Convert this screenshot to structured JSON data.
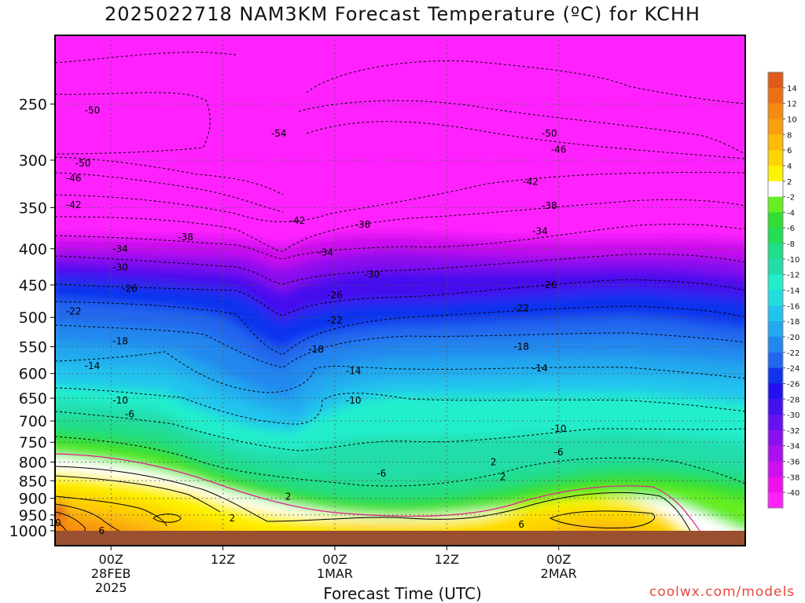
{
  "title": "2025022718 NAM3KM Forecast Temperature (ºC) for KCHH",
  "xlabel": "Forecast Time (UTC)",
  "credit": "coolwx.com/models",
  "chart_data": {
    "type": "heatmap",
    "title": "2025022718 NAM3KM Forecast Temperature (ºC) for KCHH",
    "xlabel": "Forecast Time (UTC)",
    "ylabel": "",
    "y_scale": "log",
    "y_inverted": true,
    "ylim": [
      1000,
      200
    ],
    "xlim": [
      "2025-02-27T18Z",
      "2025-03-02T20Z"
    ],
    "y_ticks": [
      250,
      300,
      350,
      400,
      450,
      500,
      550,
      600,
      650,
      700,
      750,
      800,
      850,
      900,
      950,
      1000
    ],
    "x_ticks": [
      {
        "x": "2025-02-28T00Z",
        "lines": [
          "00Z",
          "28FEB",
          "2025"
        ]
      },
      {
        "x": "2025-02-28T12Z",
        "lines": [
          "12Z"
        ]
      },
      {
        "x": "2025-03-01T00Z",
        "lines": [
          "00Z",
          "1MAR"
        ]
      },
      {
        "x": "2025-03-01T12Z",
        "lines": [
          "12Z"
        ]
      },
      {
        "x": "2025-03-02T00Z",
        "lines": [
          "00Z",
          "2MAR"
        ]
      }
    ],
    "grid": true,
    "colorbar": {
      "labels": [
        "14",
        "12",
        "10",
        "8",
        "6",
        "4",
        "2",
        "-2",
        "-4",
        "-6",
        "-8",
        "-10",
        "-12",
        "-14",
        "-16",
        "-18",
        "-20",
        "-22",
        "-24",
        "-26",
        "-28",
        "-30",
        "-32",
        "-34",
        "-36",
        "-38",
        "-40"
      ],
      "colors": [
        "#e05a18",
        "#ee7014",
        "#f58a10",
        "#f9a00c",
        "#fbbb08",
        "#fdd404",
        "#fdf200",
        "#ffffff",
        "#66ee22",
        "#33dd33",
        "#22dd55",
        "#22dd88",
        "#22ddaa",
        "#22eecc",
        "#22dddd",
        "#22c4ee",
        "#22a8ee",
        "#2288ee",
        "#2266ee",
        "#1133ee",
        "#2211ee",
        "#4411ee",
        "#6611ee",
        "#8811ee",
        "#aa11ee",
        "#cc11ee",
        "#ee11ee",
        "#ff22ff"
      ]
    },
    "contour_labels": [
      {
        "x": "2025-02-27T22Z",
        "y": 255,
        "value": "-50"
      },
      {
        "x": "2025-02-28T18Z",
        "y": 275,
        "value": "-54"
      },
      {
        "x": "2025-03-01T23Z",
        "y": 275,
        "value": "-50"
      },
      {
        "x": "2025-03-02T00Z",
        "y": 290,
        "value": "-46"
      },
      {
        "x": "2025-02-27T21Z",
        "y": 303,
        "value": "-50"
      },
      {
        "x": "2025-02-27T20Z",
        "y": 318,
        "value": "-46"
      },
      {
        "x": "2025-02-27T20Z",
        "y": 347,
        "value": "-42"
      },
      {
        "x": "2025-02-28T20Z",
        "y": 365,
        "value": "-42"
      },
      {
        "x": "2025-03-01T03Z",
        "y": 370,
        "value": "-38"
      },
      {
        "x": "2025-03-01T21Z",
        "y": 322,
        "value": "-42"
      },
      {
        "x": "2025-03-01T23Z",
        "y": 348,
        "value": "-38"
      },
      {
        "x": "2025-02-28T08Z",
        "y": 385,
        "value": "-38"
      },
      {
        "x": "2025-03-01T22Z",
        "y": 378,
        "value": "-34"
      },
      {
        "x": "2025-02-28T01Z",
        "y": 400,
        "value": "-34"
      },
      {
        "x": "2025-02-28T01Z",
        "y": 425,
        "value": "-30"
      },
      {
        "x": "2025-02-28T23Z",
        "y": 405,
        "value": "-34"
      },
      {
        "x": "2025-03-01T04Z",
        "y": 435,
        "value": "-30"
      },
      {
        "x": "2025-02-28T02Z",
        "y": 455,
        "value": "-26"
      },
      {
        "x": "2025-03-01T00Z",
        "y": 465,
        "value": "-26"
      },
      {
        "x": "2025-03-01T23Z",
        "y": 450,
        "value": "-26"
      },
      {
        "x": "2025-02-27T20Z",
        "y": 490,
        "value": "-22"
      },
      {
        "x": "2025-03-01T00Z",
        "y": 505,
        "value": "-22"
      },
      {
        "x": "2025-03-01T20Z",
        "y": 485,
        "value": "-22"
      },
      {
        "x": "2025-02-28T01Z",
        "y": 540,
        "value": "-18"
      },
      {
        "x": "2025-02-28T22Z",
        "y": 555,
        "value": "-18"
      },
      {
        "x": "2025-03-01T20Z",
        "y": 550,
        "value": "-18"
      },
      {
        "x": "2025-02-27T22Z",
        "y": 585,
        "value": "-14"
      },
      {
        "x": "2025-03-01T02Z",
        "y": 595,
        "value": "-14"
      },
      {
        "x": "2025-03-01T22Z",
        "y": 590,
        "value": "-14"
      },
      {
        "x": "2025-02-28T01Z",
        "y": 655,
        "value": "-10"
      },
      {
        "x": "2025-03-01T02Z",
        "y": 655,
        "value": "-10"
      },
      {
        "x": "2025-03-02T00Z",
        "y": 718,
        "value": "-10"
      },
      {
        "x": "2025-02-28T02Z",
        "y": 685,
        "value": "-6"
      },
      {
        "x": "2025-03-01T05Z",
        "y": 830,
        "value": "-6"
      },
      {
        "x": "2025-03-02T00Z",
        "y": 775,
        "value": "-6"
      },
      {
        "x": "2025-02-28T19Z",
        "y": 895,
        "value": "2"
      },
      {
        "x": "2025-02-28T13Z",
        "y": 960,
        "value": "2"
      },
      {
        "x": "2025-03-01T17Z",
        "y": 800,
        "value": "2"
      },
      {
        "x": "2025-03-01T18Z",
        "y": 840,
        "value": "2"
      },
      {
        "x": "2025-02-27T18Z",
        "y": 975,
        "value": "10"
      },
      {
        "x": "2025-02-27T23Z",
        "y": 1000,
        "value": "6"
      },
      {
        "x": "2025-03-01T20Z",
        "y": 980,
        "value": "6"
      }
    ]
  }
}
